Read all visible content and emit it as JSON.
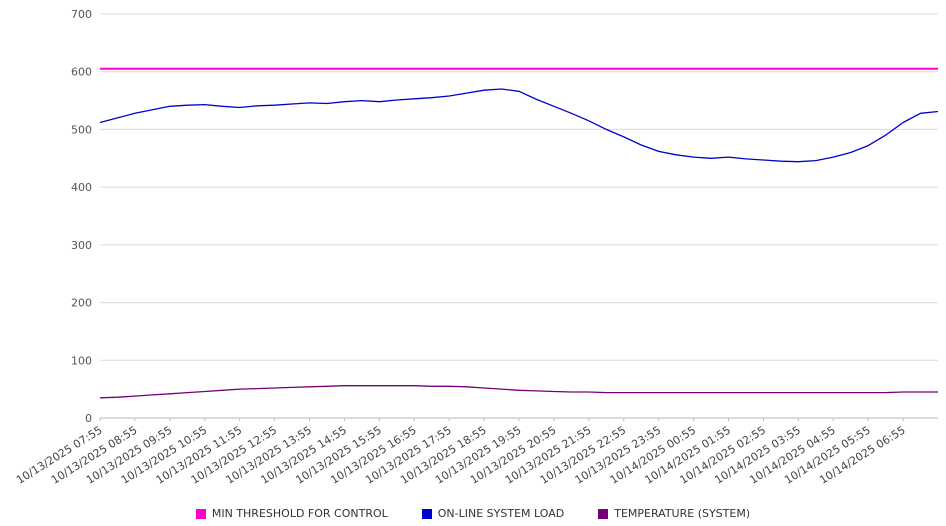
{
  "chart_data": {
    "type": "line",
    "title": "",
    "xlabel": "",
    "ylabel": "",
    "ylim": [
      0,
      700
    ],
    "yticks": [
      0,
      100,
      200,
      300,
      400,
      500,
      600,
      700
    ],
    "grid": true,
    "legend_position": "bottom",
    "categories": [
      "10/13/2025 07:55",
      "10/13/2025 08:55",
      "10/13/2025 09:55",
      "10/13/2025 10:55",
      "10/13/2025 11:55",
      "10/13/2025 12:55",
      "10/13/2025 13:55",
      "10/13/2025 14:55",
      "10/13/2025 15:55",
      "10/13/2025 16:55",
      "10/13/2025 17:55",
      "10/13/2025 18:55",
      "10/13/2025 19:55",
      "10/13/2025 20:55",
      "10/13/2025 21:55",
      "10/13/2025 22:55",
      "10/13/2025 23:55",
      "10/14/2025 00:55",
      "10/14/2025 01:55",
      "10/14/2025 02:55",
      "10/14/2025 03:55",
      "10/14/2025 04:55",
      "10/14/2025 05:55",
      "10/14/2025 06:55"
    ],
    "series": [
      {
        "name": "MIN THRESHOLD FOR CONTROL",
        "color": "#ff00cc",
        "values": [
          605,
          605
        ]
      },
      {
        "name": "ON-LINE SYSTEM LOAD",
        "color": "#0000cd",
        "values": [
          512,
          520,
          528,
          534,
          540,
          542,
          543,
          540,
          538,
          541,
          542,
          544,
          546,
          545,
          548,
          550,
          548,
          551,
          553,
          555,
          558,
          563,
          568,
          570,
          566,
          552,
          540,
          528,
          515,
          500,
          487,
          473,
          462,
          456,
          452,
          450,
          452,
          449,
          447,
          445,
          444,
          446,
          452,
          460,
          472,
          490,
          512,
          528,
          531
        ]
      },
      {
        "name": "TEMPERATURE (SYSTEM)",
        "color": "#760076",
        "values": [
          35,
          36,
          38,
          40,
          42,
          44,
          46,
          48,
          50,
          51,
          52,
          53,
          54,
          55,
          56,
          56,
          56,
          56,
          56,
          55,
          55,
          54,
          52,
          50,
          48,
          47,
          46,
          45,
          45,
          44,
          44,
          44,
          44,
          44,
          44,
          44,
          44,
          44,
          44,
          44,
          44,
          44,
          44,
          44,
          44,
          44,
          45,
          45,
          45
        ]
      }
    ]
  }
}
